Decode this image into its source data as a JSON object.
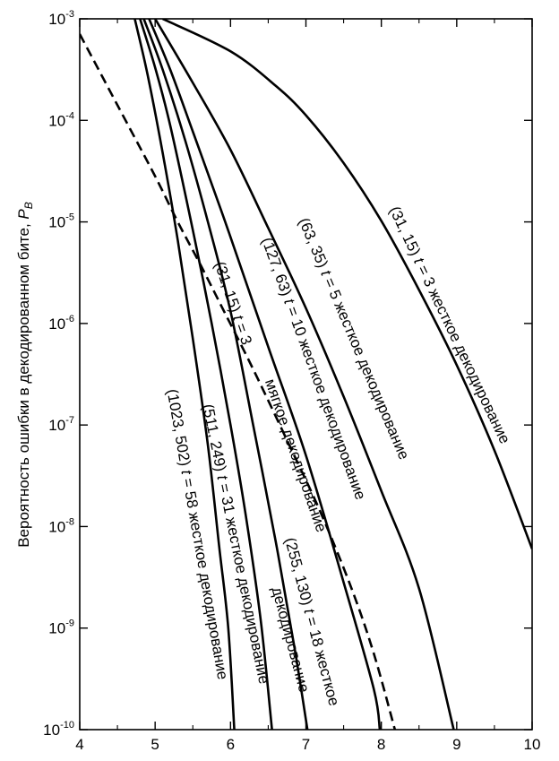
{
  "chart_data": {
    "type": "line",
    "title": "",
    "xlabel": "",
    "ylabel": "Вероятность ошибки в декодированном бите, P_B",
    "ylabel_text": "Вероятность ошибки в декодированном бите, ",
    "ylabel_symbol": "P",
    "ylabel_sub": "B",
    "xlim": [
      4,
      10
    ],
    "ylim": [
      1e-10,
      0.001
    ],
    "yscale": "log",
    "grid": false,
    "x_ticks": [
      "4",
      "5",
      "6",
      "7",
      "8",
      "9",
      "10"
    ],
    "y_ticks": [
      {
        "base": "10",
        "exp": "-3"
      },
      {
        "base": "10",
        "exp": "-4"
      },
      {
        "base": "10",
        "exp": "-5"
      },
      {
        "base": "10",
        "exp": "-6"
      },
      {
        "base": "10",
        "exp": "-7"
      },
      {
        "base": "10",
        "exp": "-8"
      },
      {
        "base": "10",
        "exp": "-9"
      },
      {
        "base": "10",
        "exp": "-10"
      }
    ],
    "series": [
      {
        "label": "(31, 15) t = 3 жесткое декодирование",
        "dashed": false,
        "points": [
          [
            5.1,
            -3.0
          ],
          [
            6.0,
            -3.32
          ],
          [
            6.6,
            -3.66
          ],
          [
            7.0,
            -3.95
          ],
          [
            7.5,
            -4.42
          ],
          [
            8.0,
            -4.99
          ],
          [
            8.5,
            -5.67
          ],
          [
            9.0,
            -6.41
          ],
          [
            9.5,
            -7.25
          ],
          [
            10.0,
            -8.22
          ]
        ]
      },
      {
        "label": "(63, 35) t = 5 жесткое декодирование",
        "dashed": false,
        "points": [
          [
            5.0,
            -3.0
          ],
          [
            5.5,
            -3.63
          ],
          [
            6.0,
            -4.29
          ],
          [
            6.5,
            -5.06
          ],
          [
            7.0,
            -5.85
          ],
          [
            7.5,
            -6.72
          ],
          [
            8.0,
            -7.65
          ],
          [
            8.5,
            -8.61
          ],
          [
            8.96,
            -10.0
          ]
        ]
      },
      {
        "label": "(127, 63) t = 10 жесткое декодирование",
        "dashed": false,
        "points": [
          [
            4.92,
            -3.0
          ],
          [
            5.2,
            -3.5
          ],
          [
            5.5,
            -4.11
          ],
          [
            5.8,
            -4.73
          ],
          [
            6.0,
            -5.15
          ],
          [
            6.5,
            -6.23
          ],
          [
            7.0,
            -7.3
          ],
          [
            7.5,
            -8.55
          ],
          [
            7.9,
            -9.6
          ],
          [
            7.98,
            -10.0
          ]
        ]
      },
      {
        "label": "(31, 15) t = 3 мягкое декодирование",
        "dashed": true,
        "points": [
          [
            4.0,
            -3.15
          ],
          [
            4.5,
            -3.85
          ],
          [
            5.0,
            -4.55
          ],
          [
            5.3,
            -5.0
          ],
          [
            5.6,
            -5.42
          ],
          [
            5.9,
            -5.86
          ],
          [
            6.3,
            -6.45
          ],
          [
            6.8,
            -7.23
          ],
          [
            7.2,
            -7.87
          ],
          [
            7.6,
            -8.6
          ],
          [
            7.9,
            -9.25
          ],
          [
            8.18,
            -10.0
          ]
        ]
      },
      {
        "label": "(255, 130) t = 18 жесткое декодирование",
        "dashed": false,
        "points": [
          [
            4.85,
            -3.0
          ],
          [
            5.1,
            -3.5
          ],
          [
            5.4,
            -4.2
          ],
          [
            5.7,
            -5.0
          ],
          [
            6.0,
            -5.88
          ],
          [
            6.3,
            -7.0
          ],
          [
            6.6,
            -8.15
          ],
          [
            6.85,
            -9.2
          ],
          [
            7.02,
            -10.0
          ]
        ]
      },
      {
        "label": "(511, 249) t = 31 жесткое декодирование",
        "dashed": false,
        "points": [
          [
            4.8,
            -3.0
          ],
          [
            5.0,
            -3.48
          ],
          [
            5.2,
            -4.05
          ],
          [
            5.5,
            -5.08
          ],
          [
            5.75,
            -6.0
          ],
          [
            6.0,
            -7.0
          ],
          [
            6.2,
            -7.88
          ],
          [
            6.4,
            -8.92
          ],
          [
            6.55,
            -10.0
          ]
        ]
      },
      {
        "label": "(1023, 502) t = 58 жесткое декодирование",
        "dashed": false,
        "points": [
          [
            4.73,
            -3.0
          ],
          [
            4.9,
            -3.55
          ],
          [
            5.1,
            -4.32
          ],
          [
            5.3,
            -5.18
          ],
          [
            5.5,
            -6.15
          ],
          [
            5.7,
            -7.2
          ],
          [
            5.85,
            -8.2
          ],
          [
            5.97,
            -9.0
          ],
          [
            6.05,
            -10.0
          ]
        ]
      }
    ],
    "curve_labels": [
      {
        "series": 0,
        "parts": [
          {
            "t": "(31, 15) "
          },
          {
            "t": "t",
            "i": true
          },
          {
            "t": " = 3 жесткое декодирование"
          }
        ]
      },
      {
        "series": 1,
        "parts": [
          {
            "t": "(63, 35) "
          },
          {
            "t": "t",
            "i": true
          },
          {
            "t": " = 5 жесткое декодирование"
          }
        ]
      },
      {
        "series": 2,
        "parts": [
          {
            "t": "(127, 63) "
          },
          {
            "t": "t",
            "i": true
          },
          {
            "t": " = 10 жесткое декодирование"
          }
        ]
      },
      {
        "series": 3,
        "parts": [
          {
            "t": "(31, 15) "
          },
          {
            "t": "t",
            "i": true
          },
          {
            "t": " = 3"
          }
        ]
      },
      {
        "series": 3,
        "parts": [
          {
            "t": "мягкое декодирование"
          }
        ]
      },
      {
        "series": 4,
        "parts": [
          {
            "t": "(255, 130) "
          },
          {
            "t": "t",
            "i": true
          },
          {
            "t": " = 18 жесткое"
          }
        ]
      },
      {
        "series": 4,
        "parts": [
          {
            "t": "декодирование"
          }
        ]
      },
      {
        "series": 5,
        "parts": [
          {
            "t": "(511, 249) "
          },
          {
            "t": "t",
            "i": true
          },
          {
            "t": " = 31 жесткое декодирование"
          }
        ]
      },
      {
        "series": 6,
        "parts": [
          {
            "t": "(1023, 502) "
          },
          {
            "t": "t",
            "i": true
          },
          {
            "t": " = 58 жесткое декодирование"
          }
        ]
      }
    ]
  }
}
